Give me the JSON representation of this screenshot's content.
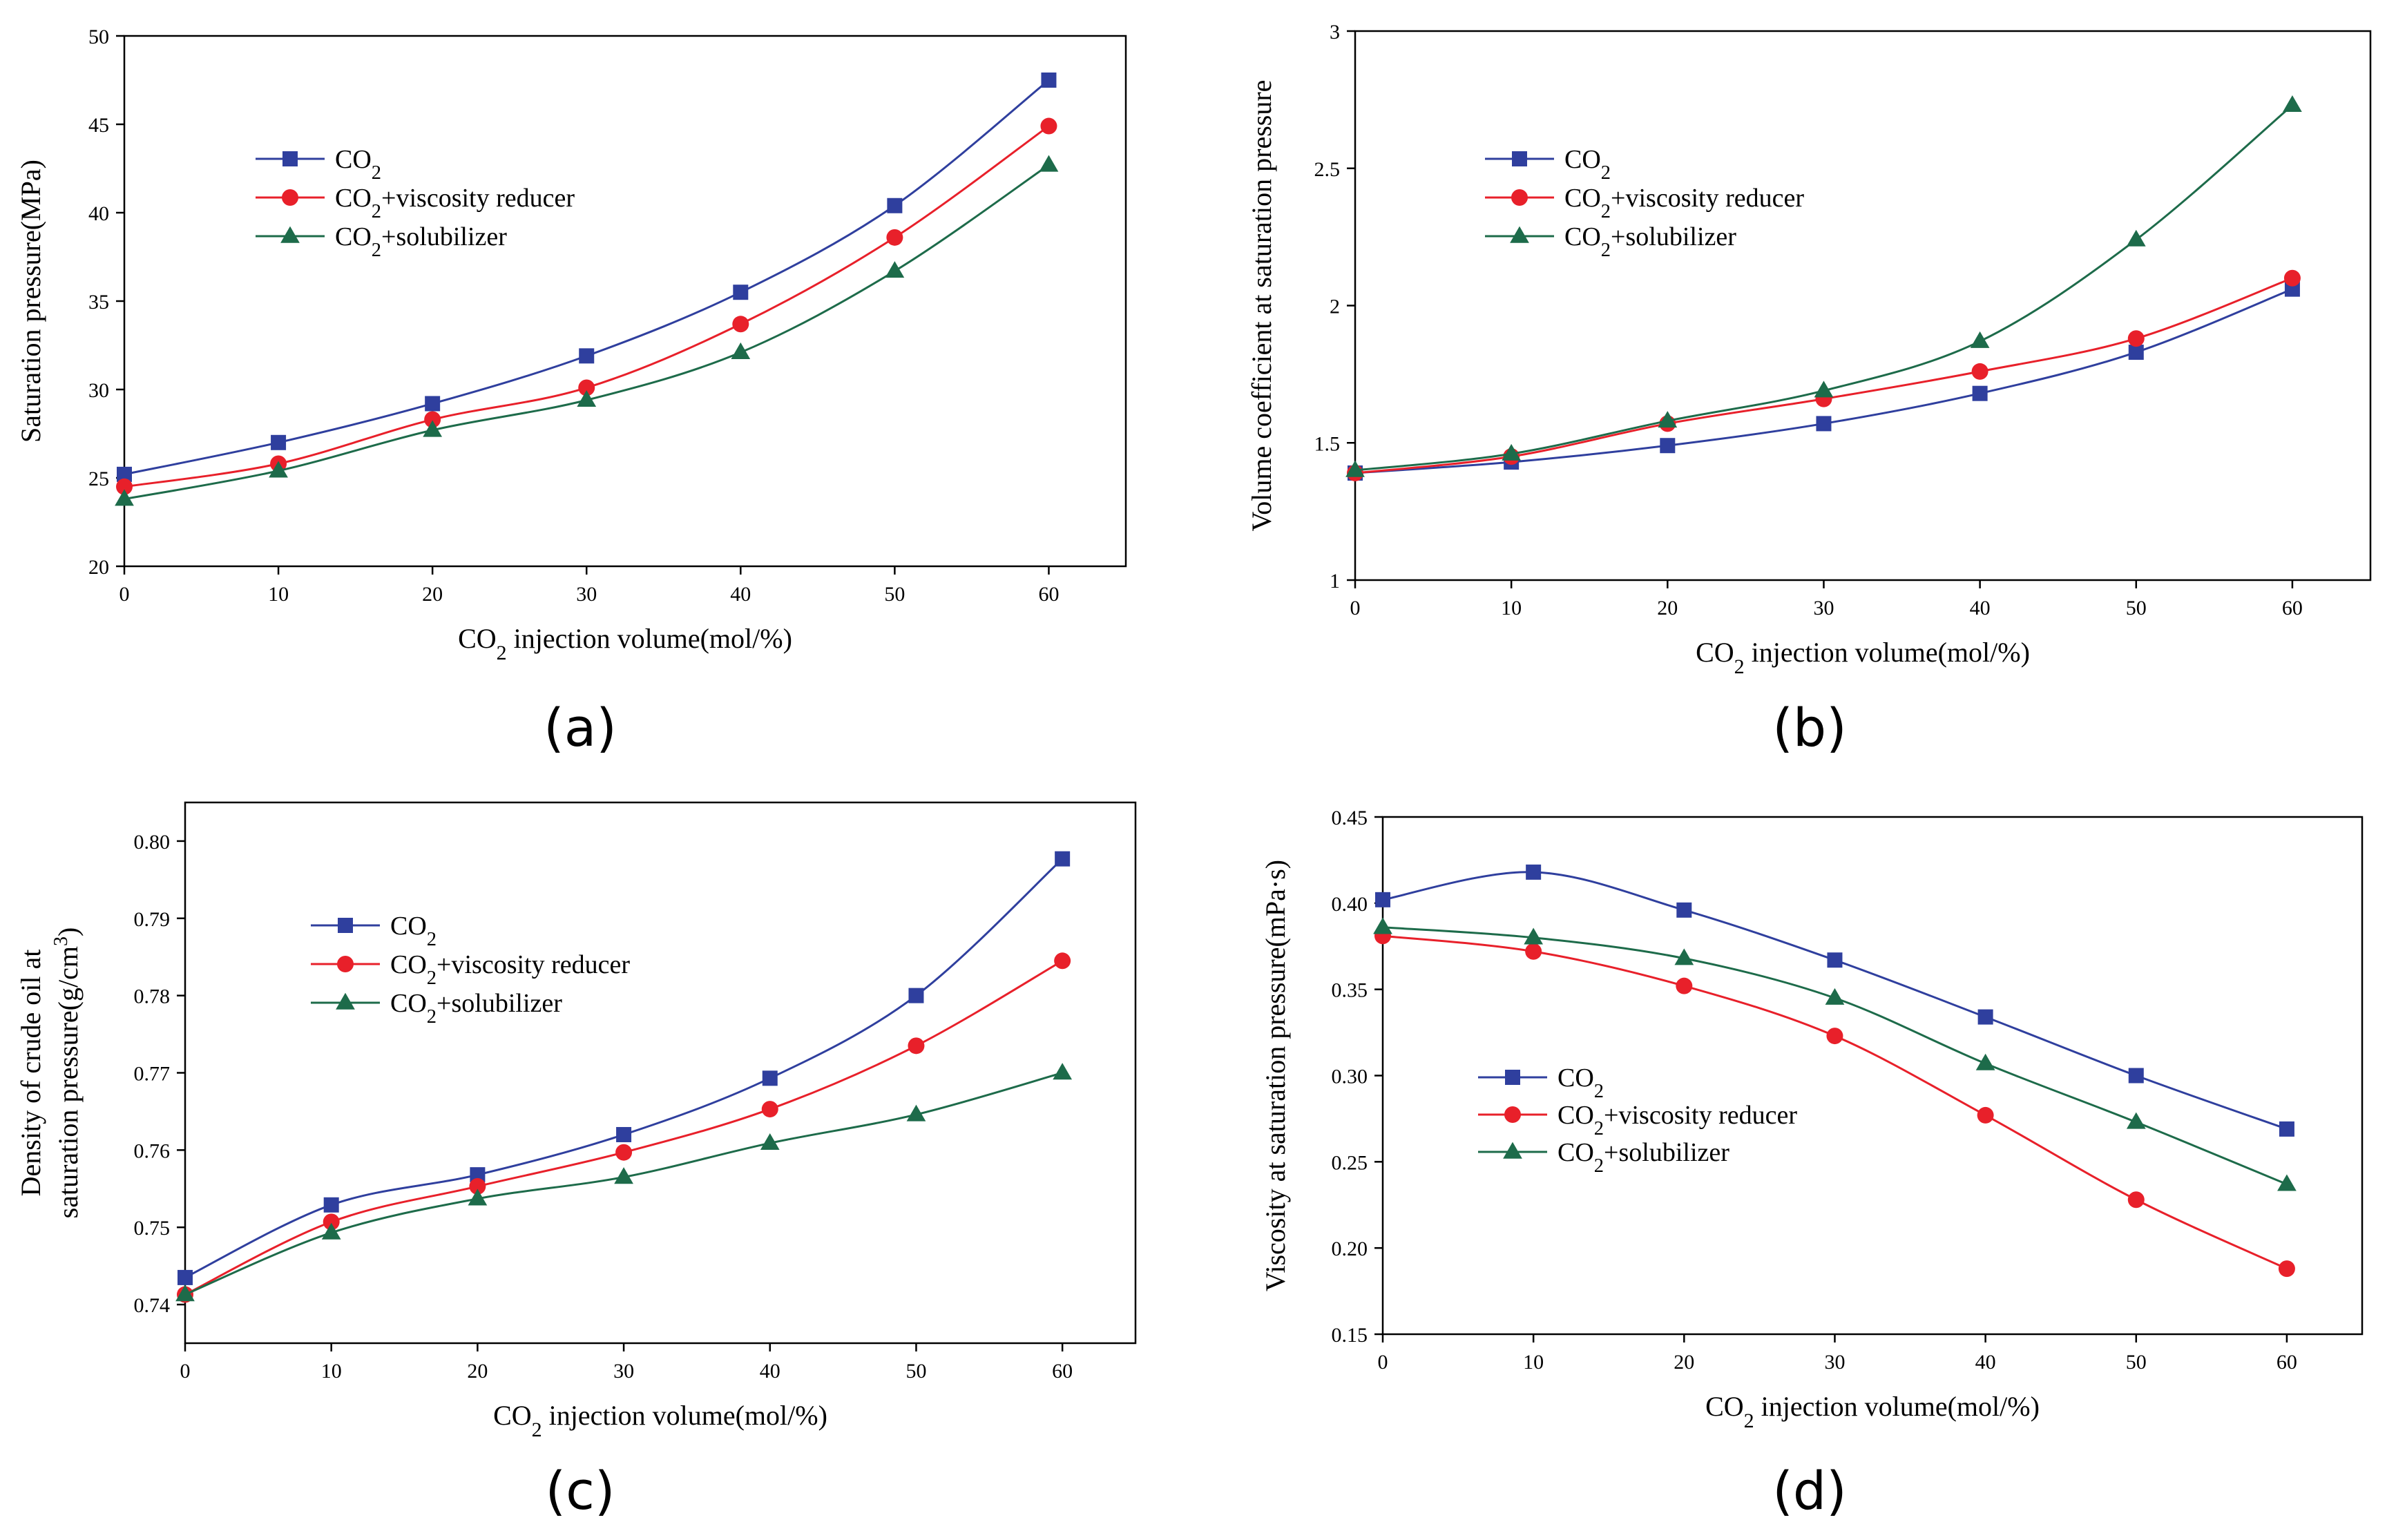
{
  "figure": {
    "colors": {
      "CO2": "#2f3f9e",
      "CO2+viscosity reducer": "#e8202a",
      "CO2+solubilizer": "#1d6b4a",
      "axis": "#000000"
    }
  },
  "chart_data": [
    {
      "panel": "(a)",
      "type": "line",
      "xlabel": "CO2 injection volume(mol/%)",
      "ylabel": "Saturation pressure(MPa)",
      "xlim": [
        0,
        65
      ],
      "ylim": [
        20,
        50
      ],
      "xticks": [
        0,
        10,
        20,
        30,
        40,
        50,
        60
      ],
      "yticks": [
        20,
        25,
        30,
        35,
        40,
        45,
        50
      ],
      "x": [
        0,
        10,
        20,
        30,
        40,
        50,
        60
      ],
      "legend_position": "upper-left",
      "series": [
        {
          "name": "CO2",
          "marker": "square",
          "values": [
            25.2,
            27.0,
            29.2,
            31.9,
            35.5,
            40.4,
            47.5
          ]
        },
        {
          "name": "CO2+viscosity reducer",
          "marker": "circle",
          "values": [
            24.5,
            25.8,
            28.3,
            30.1,
            33.7,
            38.6,
            44.9
          ]
        },
        {
          "name": "CO2+solubilizer",
          "marker": "triangle",
          "values": [
            23.8,
            25.4,
            27.7,
            29.4,
            32.1,
            36.7,
            42.7
          ]
        }
      ]
    },
    {
      "panel": "(b)",
      "type": "line",
      "xlabel": "CO2 injection volume(mol/%)",
      "ylabel": "Volume coefficient at saturation pressure",
      "xlim": [
        0,
        65
      ],
      "ylim": [
        1.0,
        3.0
      ],
      "xticks": [
        0,
        10,
        20,
        30,
        40,
        50,
        60
      ],
      "yticks": [
        1.0,
        1.5,
        2.0,
        2.5,
        3.0
      ],
      "x": [
        0,
        10,
        20,
        30,
        40,
        50,
        60
      ],
      "legend_position": "upper-left",
      "series": [
        {
          "name": "CO2",
          "marker": "square",
          "values": [
            1.39,
            1.43,
            1.49,
            1.57,
            1.68,
            1.83,
            2.06
          ]
        },
        {
          "name": "CO2+viscosity reducer",
          "marker": "circle",
          "values": [
            1.39,
            1.45,
            1.57,
            1.66,
            1.76,
            1.88,
            2.1
          ]
        },
        {
          "name": "CO2+solubilizer",
          "marker": "triangle",
          "values": [
            1.4,
            1.46,
            1.58,
            1.69,
            1.87,
            2.24,
            2.73
          ]
        }
      ]
    },
    {
      "panel": "(c)",
      "type": "line",
      "xlabel": "CO2 injection volume(mol/%)",
      "ylabel_line1": "Density of crude oil at",
      "ylabel_line2": "saturation pressure(g/cm3)",
      "xlim": [
        0,
        65
      ],
      "ylim": [
        0.735,
        0.805
      ],
      "xticks": [
        0,
        10,
        20,
        30,
        40,
        50,
        60
      ],
      "yticks": [
        0.74,
        0.75,
        0.76,
        0.77,
        0.78,
        0.79,
        0.8
      ],
      "ytick_labels": [
        "0.74",
        "0.75",
        "0.76",
        "0.77",
        "0.78",
        "0.79",
        "0.80"
      ],
      "x": [
        0,
        10,
        20,
        30,
        40,
        50,
        60
      ],
      "legend_position": "upper-left",
      "series": [
        {
          "name": "CO2",
          "marker": "square",
          "values": [
            0.7435,
            0.7529,
            0.7568,
            0.762,
            0.7693,
            0.78,
            0.7977
          ]
        },
        {
          "name": "CO2+viscosity reducer",
          "marker": "circle",
          "values": [
            0.7413,
            0.7507,
            0.7553,
            0.7597,
            0.7653,
            0.7735,
            0.7845
          ]
        },
        {
          "name": "CO2+solubilizer",
          "marker": "triangle",
          "values": [
            0.7413,
            0.7493,
            0.7537,
            0.7565,
            0.7609,
            0.7646,
            0.77
          ]
        }
      ]
    },
    {
      "panel": "(d)",
      "type": "line",
      "xlabel": "CO2 injection volume(mol/%)",
      "ylabel": "Viscosity at saturation pressure(mPa·s)",
      "xlim": [
        0,
        65
      ],
      "ylim": [
        0.15,
        0.45
      ],
      "xticks": [
        0,
        10,
        20,
        30,
        40,
        50,
        60
      ],
      "yticks": [
        0.15,
        0.2,
        0.25,
        0.3,
        0.35,
        0.4,
        0.45
      ],
      "ytick_labels": [
        "0.15",
        "0.20",
        "0.25",
        "0.30",
        "0.35",
        "0.40",
        "0.45"
      ],
      "x": [
        0,
        10,
        20,
        30,
        40,
        50,
        60
      ],
      "legend_position": "center-left",
      "series": [
        {
          "name": "CO2",
          "marker": "square",
          "values": [
            0.402,
            0.418,
            0.396,
            0.367,
            0.334,
            0.3,
            0.269
          ]
        },
        {
          "name": "CO2+viscosity reducer",
          "marker": "circle",
          "values": [
            0.381,
            0.372,
            0.352,
            0.323,
            0.277,
            0.228,
            0.188
          ]
        },
        {
          "name": "CO2+solubilizer",
          "marker": "triangle",
          "values": [
            0.386,
            0.38,
            0.368,
            0.345,
            0.307,
            0.273,
            0.237
          ]
        }
      ]
    }
  ]
}
